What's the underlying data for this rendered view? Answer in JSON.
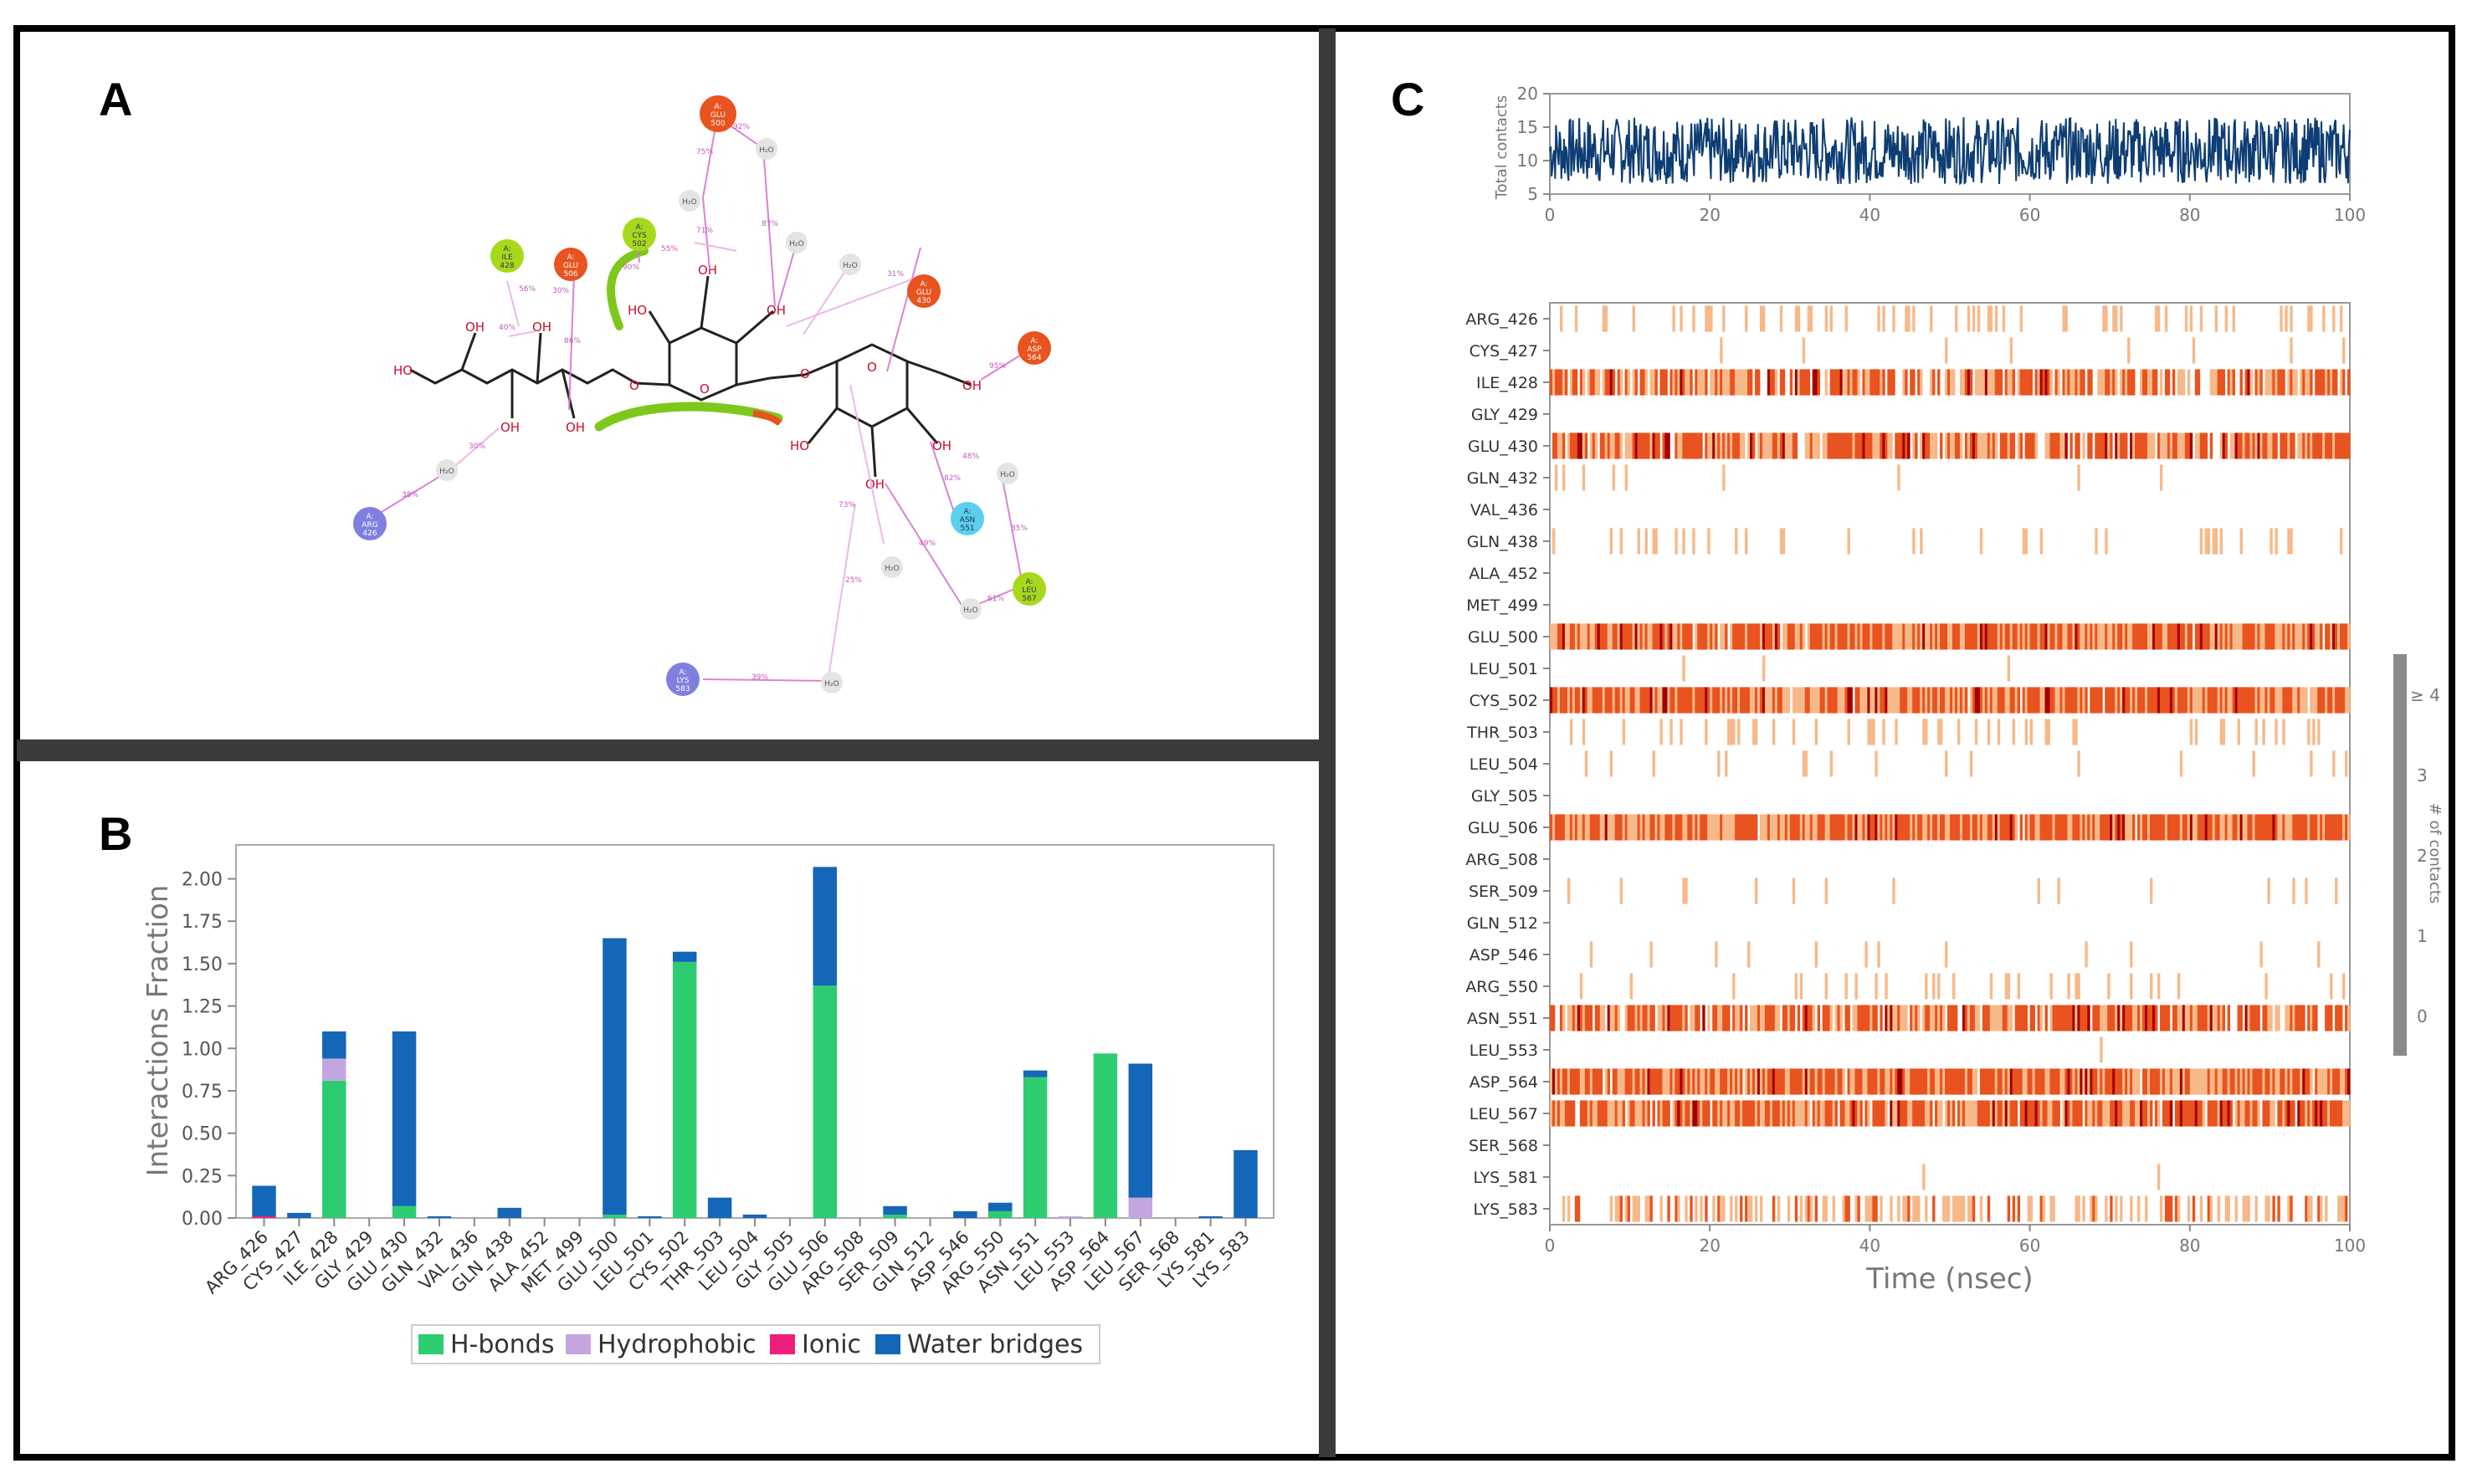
{
  "panels": {
    "a": {
      "label": "A"
    },
    "b": {
      "label": "B"
    },
    "c": {
      "label": "C"
    }
  },
  "colors": {
    "hbond": "#2ecc71",
    "hydrophobic": "#c3a6e0",
    "ionic": "#ee1e7a",
    "water": "#1466b8",
    "contacts_line": "#0d3d73",
    "heat_dark": "#a30000",
    "heat_mid": "#e8531f",
    "heat_light": "#f6b98a"
  },
  "diagram": {
    "residues": [
      {
        "id": "glu500",
        "prefix": "A:",
        "name": "GLU",
        "num": "500",
        "kind": "negative"
      },
      {
        "id": "cys502",
        "prefix": "A:",
        "name": "CYS",
        "num": "502",
        "kind": "hydrophobic"
      },
      {
        "id": "ile428",
        "prefix": "A:",
        "name": "ILE",
        "num": "428",
        "kind": "hydrophobic"
      },
      {
        "id": "glu506",
        "prefix": "A:",
        "name": "GLU",
        "num": "506",
        "kind": "negative"
      },
      {
        "id": "glu430",
        "prefix": "A:",
        "name": "GLU",
        "num": "430",
        "kind": "negative"
      },
      {
        "id": "asp564",
        "prefix": "A:",
        "name": "ASP",
        "num": "564",
        "kind": "negative"
      },
      {
        "id": "arg426",
        "prefix": "A:",
        "name": "ARG",
        "num": "426",
        "kind": "positive"
      },
      {
        "id": "asn551",
        "prefix": "A:",
        "name": "ASN",
        "num": "551",
        "kind": "polar"
      },
      {
        "id": "leu567",
        "prefix": "A:",
        "name": "LEU",
        "num": "567",
        "kind": "hydrophobic"
      },
      {
        "id": "lys583",
        "prefix": "A:",
        "name": "LYS",
        "num": "583",
        "kind": "positive"
      }
    ],
    "water_label": "H₂O",
    "hydroxyl_label": "OH",
    "ho_label": "HO",
    "oxygen_label": "O",
    "percent_labels": [
      "92%",
      "75%",
      "71%",
      "87%",
      "90%",
      "55%",
      "56%",
      "86%",
      "40%",
      "30%",
      "31%",
      "95%",
      "82%",
      "48%",
      "35%",
      "73%",
      "25%",
      "49%",
      "61%",
      "39%",
      "38%",
      "30%"
    ]
  },
  "chart_data": [
    {
      "type": "bar",
      "title": "",
      "xlabel": "",
      "ylabel": "Interactions Fraction",
      "ylim": [
        0,
        2.2
      ],
      "yticks": [
        "0.00",
        "0.25",
        "0.50",
        "0.75",
        "1.00",
        "1.25",
        "1.50",
        "1.75",
        "2.00"
      ],
      "categories": [
        "ARG_426",
        "CYS_427",
        "ILE_428",
        "GLY_429",
        "GLU_430",
        "GLN_432",
        "VAL_436",
        "GLN_438",
        "ALA_452",
        "MET_499",
        "GLU_500",
        "LEU_501",
        "CYS_502",
        "THR_503",
        "LEU_504",
        "GLY_505",
        "GLU_506",
        "ARG_508",
        "SER_509",
        "GLN_512",
        "ASP_546",
        "ARG_550",
        "ASN_551",
        "LEU_553",
        "ASP_564",
        "LEU_567",
        "SER_568",
        "LYS_581",
        "LYS_583"
      ],
      "series": [
        {
          "name": "H-bonds",
          "color": "#2ecc71",
          "values": [
            0,
            0,
            0.81,
            0,
            0.07,
            0,
            0,
            0,
            0,
            0,
            0.02,
            0,
            1.51,
            0,
            0,
            0,
            1.37,
            0,
            0.02,
            0,
            0,
            0.04,
            0.83,
            0,
            0.97,
            0,
            0,
            0,
            0
          ]
        },
        {
          "name": "Hydrophobic",
          "color": "#c3a6e0",
          "values": [
            0,
            0,
            0.13,
            0,
            0,
            0,
            0,
            0,
            0,
            0,
            0,
            0,
            0,
            0,
            0,
            0,
            0,
            0,
            0,
            0,
            0,
            0,
            0,
            0.01,
            0,
            0.12,
            0,
            0,
            0
          ]
        },
        {
          "name": "Ionic",
          "color": "#ee1e7a",
          "values": [
            0.01,
            0,
            0,
            0,
            0,
            0,
            0,
            0,
            0,
            0,
            0,
            0,
            0,
            0,
            0,
            0,
            0,
            0,
            0,
            0,
            0,
            0,
            0,
            0,
            0,
            0,
            0,
            0,
            0
          ]
        },
        {
          "name": "Water bridges",
          "color": "#1466b8",
          "values": [
            0.18,
            0.03,
            0.16,
            0,
            1.03,
            0.01,
            0,
            0.06,
            0,
            0,
            1.63,
            0.01,
            0.06,
            0.12,
            0.02,
            0,
            0.7,
            0,
            0.05,
            0,
            0.04,
            0.05,
            0.04,
            0,
            0,
            0.79,
            0,
            0.01,
            0.4
          ]
        }
      ],
      "legend": [
        "H-bonds",
        "Hydrophobic",
        "Ionic",
        "Water bridges"
      ],
      "legend_position": "bottom-center"
    },
    {
      "type": "line",
      "xlabel": "",
      "ylabel": "Total contacts",
      "xlim": [
        0,
        100
      ],
      "ylim": [
        5,
        20
      ],
      "xticks": [
        "0",
        "20",
        "40",
        "60",
        "80",
        "100"
      ],
      "yticks": [
        "5",
        "10",
        "15",
        "20"
      ],
      "series": [
        {
          "name": "Total contacts",
          "mean": 11.5,
          "range": [
            5,
            20
          ]
        }
      ]
    },
    {
      "type": "heatmap",
      "xlabel": "Time (nsec)",
      "xlim": [
        0,
        100
      ],
      "xticks": [
        "0",
        "20",
        "40",
        "60",
        "80",
        "100"
      ],
      "rows": [
        "ARG_426",
        "CYS_427",
        "ILE_428",
        "GLY_429",
        "GLU_430",
        "GLN_432",
        "VAL_436",
        "GLN_438",
        "ALA_452",
        "MET_499",
        "GLU_500",
        "LEU_501",
        "CYS_502",
        "THR_503",
        "LEU_504",
        "GLY_505",
        "GLU_506",
        "ARG_508",
        "SER_509",
        "GLN_512",
        "ASP_546",
        "ARG_550",
        "ASN_551",
        "LEU_553",
        "ASP_564",
        "LEU_567",
        "SER_568",
        "LYS_581",
        "LYS_583"
      ],
      "occupancy": [
        0.18,
        0.03,
        0.75,
        0.0,
        0.85,
        0.02,
        0.0,
        0.12,
        0.0,
        0.0,
        0.98,
        0.01,
        0.97,
        0.15,
        0.06,
        0.0,
        0.99,
        0.0,
        0.08,
        0.0,
        0.05,
        0.1,
        0.88,
        0.01,
        0.98,
        0.9,
        0.0,
        0.01,
        0.4
      ],
      "colorbar": {
        "label": "# of contacts",
        "ticks": [
          "0",
          "1",
          "2",
          "3",
          "≥ 4"
        ]
      }
    }
  ]
}
